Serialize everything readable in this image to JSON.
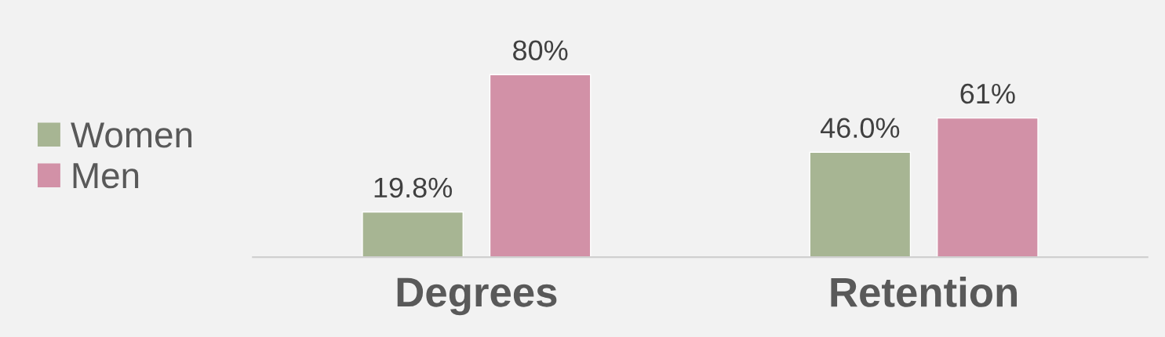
{
  "chart_data": {
    "type": "bar",
    "categories": [
      "Degrees",
      "Retention"
    ],
    "series": [
      {
        "name": "Women",
        "color": "#a7b593",
        "values": [
          19.8,
          46.0
        ],
        "value_labels": [
          "19.8%",
          "46.0%"
        ]
      },
      {
        "name": "Men",
        "color": "#d291a7",
        "values": [
          80,
          61
        ],
        "value_labels": [
          "80%",
          "61%"
        ]
      }
    ],
    "legend": "left",
    "grid": false
  }
}
